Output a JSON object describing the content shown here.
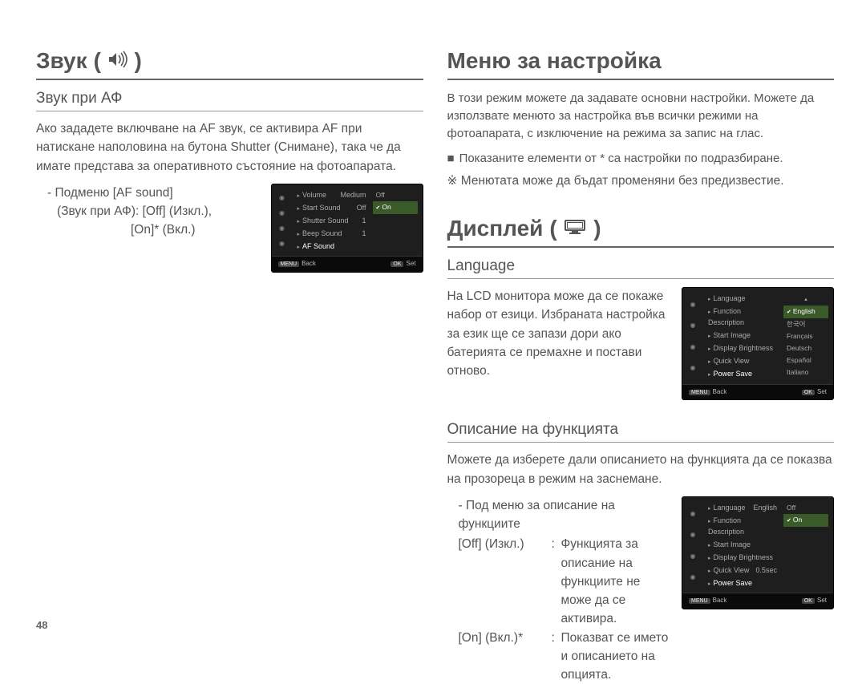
{
  "page_number": "48",
  "colors": {
    "text": "#555555",
    "rule": "#666666",
    "lcd_bg": "#1e1e1e",
    "lcd_highlight": "#3a5a2a"
  },
  "left": {
    "h1": "Звук",
    "sec1": {
      "title": "Звук при АФ",
      "para": "Ако зададете включване на AF звук, се активира AF при натискане наполовина на бутона Shutter (Снимане), така че да имате представа за оперативното състояние на фотоапарата.",
      "sub_line1": "- Подменю [AF sound]",
      "sub_line2": "(Звук при АФ): [Off] (Изкл.),",
      "sub_line3": "[On]* (Вкл.)",
      "lcd": {
        "items": [
          {
            "label": "Volume",
            "val": "Medium"
          },
          {
            "label": "Start Sound",
            "val": "Off"
          },
          {
            "label": "Shutter Sound",
            "val": "1"
          },
          {
            "label": "Beep Sound",
            "val": "1"
          },
          {
            "label": "AF Sound",
            "val": ""
          }
        ],
        "options": [
          {
            "label": "Off",
            "hl": false,
            "check": false
          },
          {
            "label": "On",
            "hl": true,
            "check": true
          }
        ],
        "back": "Back",
        "set": "Set"
      }
    }
  },
  "right": {
    "h1a": "Меню за настройка",
    "intro": "В този режим можете да задавате основни настройки. Можете да използвате менюто за настройка във всички режими на фотоапарата, с изключение на режима за запис на глас.",
    "bullet": "Показаните елементи от * са настройки по подразбиране.",
    "note": "※ Менютата може да бъдат променяни без предизвестие.",
    "h1b": "Дисплей",
    "lang": {
      "title": "Language",
      "para": "На LCD монитора може да се покаже набор от езици. Избраната настройка за език ще се запази дори ако батерията се премахне и постави отново.",
      "lcd": {
        "items": [
          {
            "label": "Language",
            "val": ""
          },
          {
            "label": "Function Description",
            "val": ""
          },
          {
            "label": "Start Image",
            "val": ""
          },
          {
            "label": "Display Brightness",
            "val": ""
          },
          {
            "label": "Quick View",
            "val": ""
          },
          {
            "label": "Power Save",
            "val": ""
          }
        ],
        "options": [
          {
            "label": "English",
            "hl": true,
            "check": true
          },
          {
            "label": "한국어",
            "hl": false
          },
          {
            "label": "Français",
            "hl": false
          },
          {
            "label": "Deutsch",
            "hl": false
          },
          {
            "label": "Español",
            "hl": false
          },
          {
            "label": "Italiano",
            "hl": false
          }
        ],
        "back": "Back",
        "set": "Set"
      }
    },
    "fd": {
      "title": "Описание на функцията",
      "para": "Можете да изберете дали описанието на функцията да се показва на прозореца в режим на заснемане.",
      "sub": "- Под меню за описание на функциите",
      "off_key": "[Off] (Изкл.)",
      "off_val": "Функцията за описание на функциите не може да се активира.",
      "on_key": "[On] (Вкл.)*",
      "on_val": "Показват се името и описанието на опцията.",
      "lcd": {
        "items": [
          {
            "label": "Language",
            "val": "English"
          },
          {
            "label": "Function Description",
            "val": ""
          },
          {
            "label": "Start Image",
            "val": ""
          },
          {
            "label": "Display Brightness",
            "val": ""
          },
          {
            "label": "Quick View",
            "val": "0.5sec"
          },
          {
            "label": "Power Save",
            "val": ""
          }
        ],
        "options": [
          {
            "label": "Off",
            "hl": false
          },
          {
            "label": "On",
            "hl": true,
            "check": true
          }
        ],
        "back": "Back",
        "set": "Set"
      }
    }
  }
}
